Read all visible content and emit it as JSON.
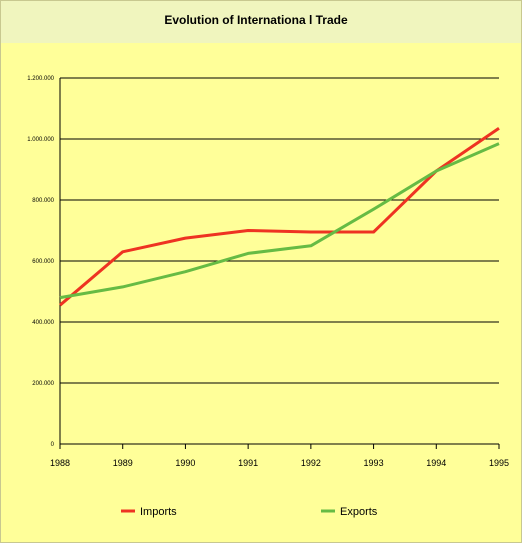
{
  "chart_data": {
    "type": "line",
    "title": "Evolution of Internationa l Trade",
    "xlabel": "",
    "ylabel": "",
    "x": [
      "1988",
      "1989",
      "1990",
      "1991",
      "1992",
      "1993",
      "1994",
      "1995"
    ],
    "y_ticks": [
      "0",
      "200.000",
      "400.000",
      "600.000",
      "800.000",
      "1.000.000",
      "1.200.000"
    ],
    "ylim": [
      0,
      1200000
    ],
    "grid": "horizontal",
    "legend_position": "bottom",
    "series": [
      {
        "name": "Imports",
        "color": "#ee3322",
        "values": [
          455000,
          630000,
          675000,
          700000,
          695000,
          695000,
          895000,
          1035000
        ]
      },
      {
        "name": "Exports",
        "color": "#66bb44",
        "values": [
          480000,
          515000,
          565000,
          625000,
          650000,
          770000,
          895000,
          985000
        ]
      }
    ]
  }
}
